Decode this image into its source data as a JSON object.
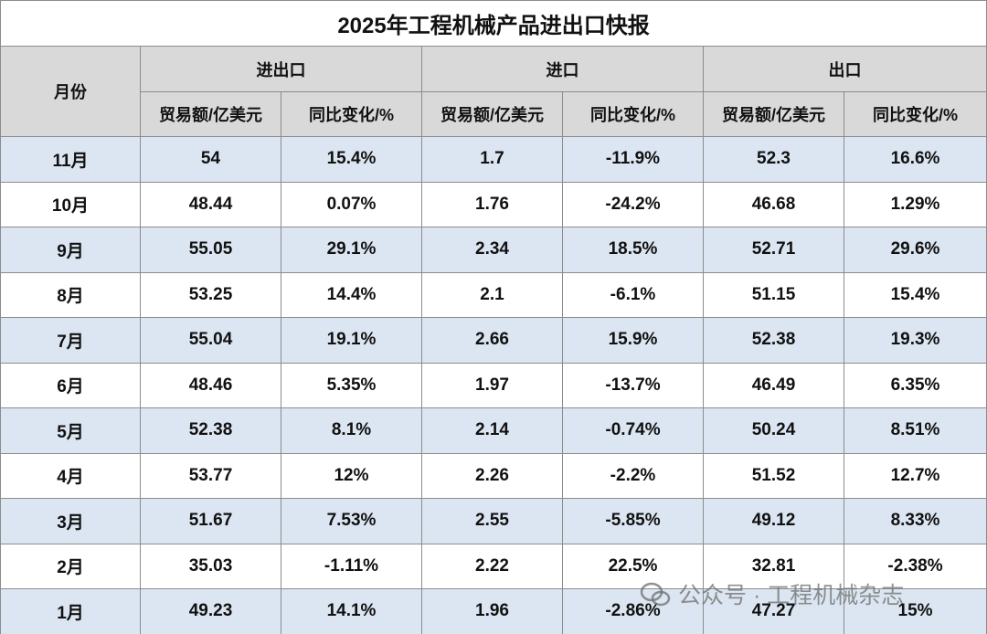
{
  "title": "2025年工程机械产品进出口快报",
  "header": {
    "month": "月份",
    "groups": [
      "进出口",
      "进口",
      "出口"
    ],
    "subheaders": [
      "贸易额/亿美元",
      "同比变化/%",
      "贸易额/亿美元",
      "同比变化/%",
      "贸易额/亿美元",
      "同比变化/%"
    ]
  },
  "rows": [
    [
      "11月",
      "54",
      "15.4%",
      "1.7",
      "-11.9%",
      "52.3",
      "16.6%"
    ],
    [
      "10月",
      "48.44",
      "0.07%",
      "1.76",
      "-24.2%",
      "46.68",
      "1.29%"
    ],
    [
      "9月",
      "55.05",
      "29.1%",
      "2.34",
      "18.5%",
      "52.71",
      "29.6%"
    ],
    [
      "8月",
      "53.25",
      "14.4%",
      "2.1",
      "-6.1%",
      "51.15",
      "15.4%"
    ],
    [
      "7月",
      "55.04",
      "19.1%",
      "2.66",
      "15.9%",
      "52.38",
      "19.3%"
    ],
    [
      "6月",
      "48.46",
      "5.35%",
      "1.97",
      "-13.7%",
      "46.49",
      "6.35%"
    ],
    [
      "5月",
      "52.38",
      "8.1%",
      "2.14",
      "-0.74%",
      "50.24",
      "8.51%"
    ],
    [
      "4月",
      "53.77",
      "12%",
      "2.26",
      "-2.2%",
      "51.52",
      "12.7%"
    ],
    [
      "3月",
      "51.67",
      "7.53%",
      "2.55",
      "-5.85%",
      "49.12",
      "8.33%"
    ],
    [
      "2月",
      "35.03",
      "-1.11%",
      "2.22",
      "22.5%",
      "32.81",
      "-2.38%"
    ],
    [
      "1月",
      "49.23",
      "14.1%",
      "1.96",
      "-2.86%",
      "47.27",
      "15%"
    ]
  ],
  "watermark": "公众号 · 工程机械杂志"
}
